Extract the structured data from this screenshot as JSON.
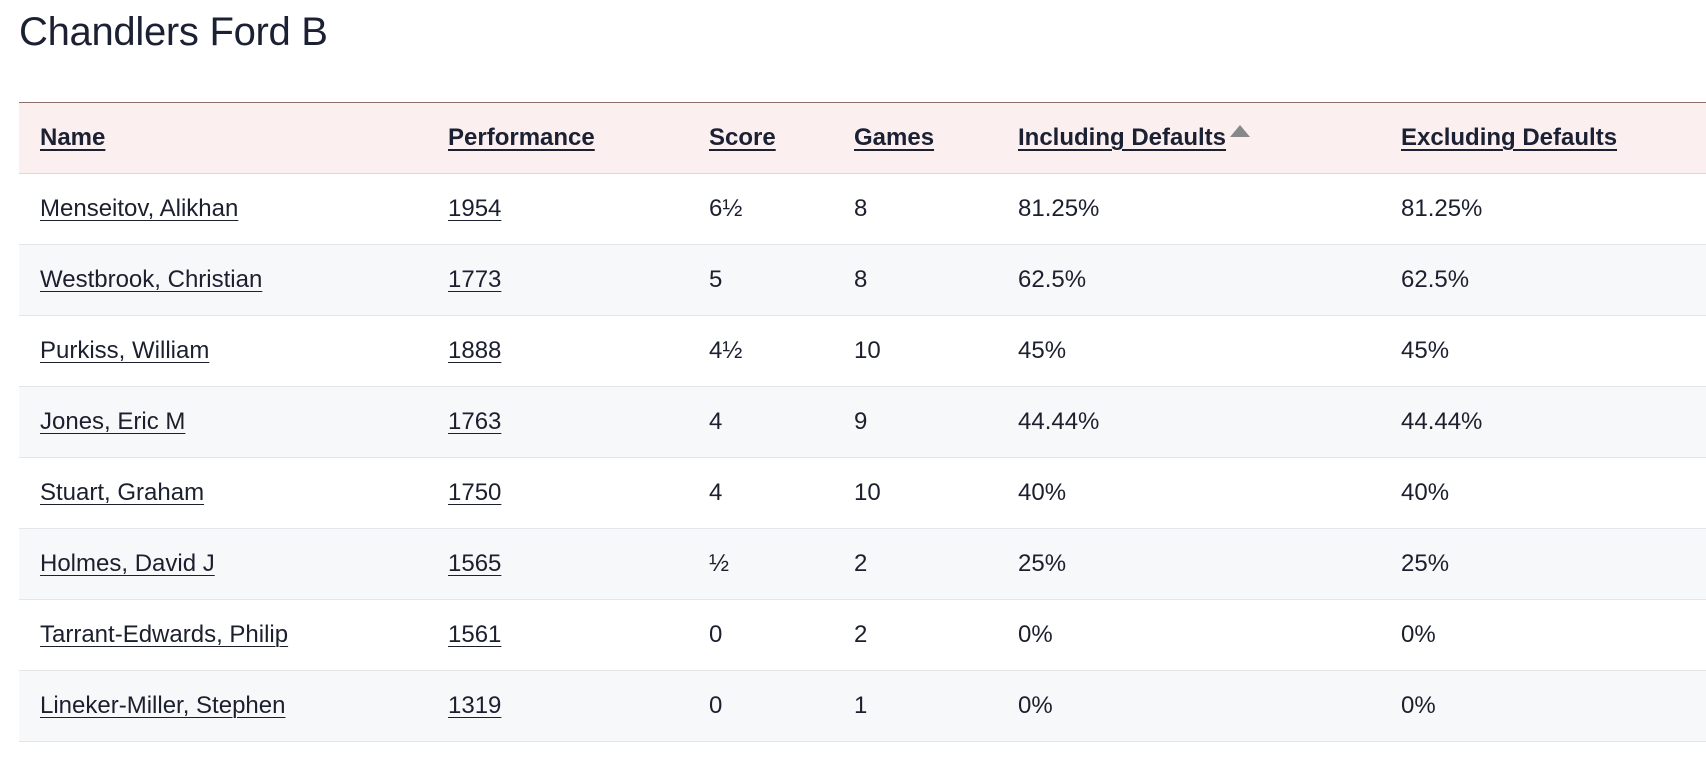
{
  "title": "Chandlers Ford B",
  "table": {
    "headers": {
      "name": "Name",
      "performance": "Performance",
      "score": "Score",
      "games": "Games",
      "including_defaults": "Including Defaults",
      "excluding_defaults": "Excluding Defaults"
    },
    "sort": {
      "column": "including_defaults",
      "indicator_icon": "sort-arrow-up-icon",
      "indicator_color": "#888888"
    },
    "rows": [
      {
        "name": "Menseitov, Alikhan",
        "performance": "1954",
        "score": "6½",
        "games": "8",
        "including_defaults": "81.25%",
        "excluding_defaults": "81.25%"
      },
      {
        "name": "Westbrook, Christian",
        "performance": "1773",
        "score": "5",
        "games": "8",
        "including_defaults": "62.5%",
        "excluding_defaults": "62.5%"
      },
      {
        "name": "Purkiss, William",
        "performance": "1888",
        "score": "4½",
        "games": "10",
        "including_defaults": "45%",
        "excluding_defaults": "45%"
      },
      {
        "name": "Jones, Eric M",
        "performance": "1763",
        "score": "4",
        "games": "9",
        "including_defaults": "44.44%",
        "excluding_defaults": "44.44%"
      },
      {
        "name": "Stuart, Graham",
        "performance": "1750",
        "score": "4",
        "games": "10",
        "including_defaults": "40%",
        "excluding_defaults": "40%"
      },
      {
        "name": "Holmes, David J",
        "performance": "1565",
        "score": "½",
        "games": "2",
        "including_defaults": "25%",
        "excluding_defaults": "25%"
      },
      {
        "name": "Tarrant-Edwards, Philip",
        "performance": "1561",
        "score": "0",
        "games": "2",
        "including_defaults": "0%",
        "excluding_defaults": "0%"
      },
      {
        "name": "Lineker-Miller, Stephen",
        "performance": "1319",
        "score": "0",
        "games": "1",
        "including_defaults": "0%",
        "excluding_defaults": "0%"
      }
    ]
  },
  "colors": {
    "header_background": "#fbf0ef",
    "alternate_row_background": "#f7f8fa",
    "text": "#1b1f2e"
  }
}
